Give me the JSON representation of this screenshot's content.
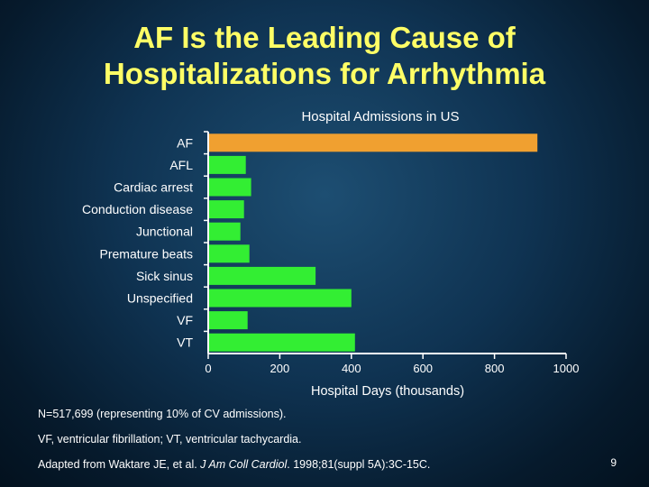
{
  "slide": {
    "title_line1": "AF Is the Leading Cause of",
    "title_line2": "Hospitalizations for Arrhythmia",
    "footnote1": "N=517,699 (representing 10% of CV admissions).",
    "footnote2": "VF, ventricular fibrillation; VT, ventricular tachycardia.",
    "citation_prefix": "Adapted from Waktare JE, et al. ",
    "citation_journal": "J Am Coll Cardiol",
    "citation_suffix": ". 1998;81(suppl 5A):3C-15C.",
    "page_number": "9"
  },
  "chart_data": {
    "type": "bar",
    "orientation": "horizontal",
    "title": "Hospital Admissions in US",
    "xlabel": "Hospital Days (thousands)",
    "ylabel": "",
    "categories": [
      "AF",
      "AFL",
      "Cardiac arrest",
      "Conduction disease",
      "Junctional",
      "Premature beats",
      "Sick sinus",
      "Unspecified",
      "VF",
      "VT"
    ],
    "values": [
      920,
      105,
      120,
      100,
      90,
      115,
      300,
      400,
      110,
      410
    ],
    "xlim": [
      0,
      1000
    ],
    "xticks": [
      0,
      200,
      400,
      600,
      800,
      1000
    ],
    "grid": false,
    "legend": "none",
    "colors": {
      "highlight": "#f0a030",
      "bar": "#33ee33",
      "axis": "#ffffff"
    },
    "highlight_category": "AF"
  }
}
